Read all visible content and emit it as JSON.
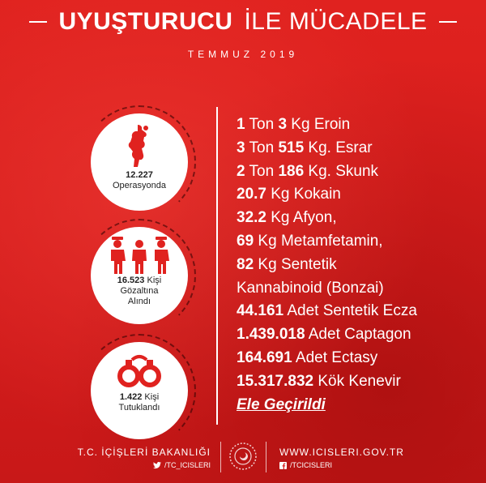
{
  "header": {
    "title_bold": "UYUŞTURUCU",
    "title_thin": "İLE MÜCADELE",
    "subtitle": "TEMMUZ 2019"
  },
  "stats": [
    {
      "icon": "hand-drugs-icon",
      "number": "12.227",
      "line1": "",
      "line2": "Operasyonda"
    },
    {
      "icon": "police-arrest-icon",
      "number": "16.523",
      "line1": "Kişi",
      "line2": "Gözaltına",
      "line3": "Alındı"
    },
    {
      "icon": "handcuffs-icon",
      "number": "1.422",
      "line1": "Kişi",
      "line2": "Tutuklandı"
    }
  ],
  "seizures": [
    {
      "parts": [
        {
          "b": "1"
        },
        {
          "t": " Ton "
        },
        {
          "b": "3"
        },
        {
          "t": " Kg Eroin"
        }
      ]
    },
    {
      "parts": [
        {
          "b": "3"
        },
        {
          "t": " Ton "
        },
        {
          "b": "515"
        },
        {
          "t": " Kg. Esrar"
        }
      ]
    },
    {
      "parts": [
        {
          "b": "2"
        },
        {
          "t": " Ton "
        },
        {
          "b": "186"
        },
        {
          "t": " Kg. Skunk"
        }
      ]
    },
    {
      "parts": [
        {
          "b": "20.7"
        },
        {
          "t": " Kg Kokain"
        }
      ]
    },
    {
      "parts": [
        {
          "b": "32.2"
        },
        {
          "t": " Kg Afyon,"
        }
      ]
    },
    {
      "parts": [
        {
          "b": "69"
        },
        {
          "t": " Kg Metamfetamin,"
        }
      ]
    },
    {
      "parts": [
        {
          "b": "82"
        },
        {
          "t": " Kg Sentetik"
        }
      ]
    },
    {
      "parts": [
        {
          "t": "Kannabinoid (Bonzai)"
        }
      ]
    },
    {
      "parts": [
        {
          "b": "44.161"
        },
        {
          "t": " Adet Sentetik Ecza"
        }
      ]
    },
    {
      "parts": [
        {
          "b": "1.439.018"
        },
        {
          "t": " Adet Captagon"
        }
      ]
    },
    {
      "parts": [
        {
          "b": "164.691"
        },
        {
          "t": " Adet Ectasy"
        }
      ]
    },
    {
      "parts": [
        {
          "b": "15.317.832"
        },
        {
          "t": " Kök Kenevir"
        }
      ]
    }
  ],
  "final": "Ele Geçirildi",
  "footer": {
    "org": "T.C. İÇİŞLERİ BAKANLIĞI",
    "twitter": "/TC_ICISLERI",
    "website": "WWW.ICISLERI.GOV.TR",
    "facebook": "/TCICISLERI"
  },
  "colors": {
    "background": "#d91f1f",
    "icon": "#e0221f",
    "text": "#ffffff"
  }
}
